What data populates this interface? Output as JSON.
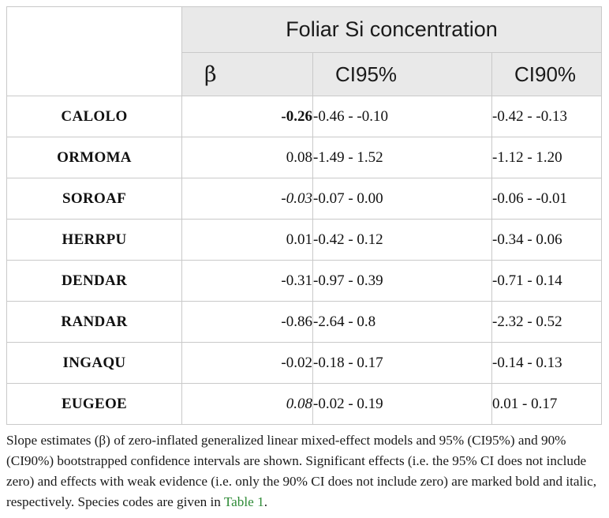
{
  "table": {
    "group_header": "Foliar Si concentration",
    "columns": [
      "β",
      "CI95%",
      "CI90%"
    ],
    "rows": [
      {
        "species": "CALOLO",
        "beta": "-0.26",
        "beta_style": "bold",
        "ci95": "-0.46 - -0.10",
        "ci90": "-0.42 - -0.13"
      },
      {
        "species": "ORMOMA",
        "beta": "0.08",
        "beta_style": "normal",
        "ci95": "-1.49 - 1.52",
        "ci90": "-1.12 - 1.20"
      },
      {
        "species": "SOROAF",
        "beta": "-0.03",
        "beta_style": "italic",
        "ci95": "-0.07 - 0.00",
        "ci90": "-0.06 - -0.01"
      },
      {
        "species": "HERRPU",
        "beta": "0.01",
        "beta_style": "normal",
        "ci95": "-0.42 - 0.12",
        "ci90": "-0.34 - 0.06"
      },
      {
        "species": "DENDAR",
        "beta": "-0.31",
        "beta_style": "normal",
        "ci95": "-0.97 - 0.39",
        "ci90": "-0.71 - 0.14"
      },
      {
        "species": "RANDAR",
        "beta": "-0.86",
        "beta_style": "normal",
        "ci95": "-2.64 - 0.8",
        "ci90": "-2.32 - 0.52"
      },
      {
        "species": "INGAQU",
        "beta": "-0.02",
        "beta_style": "normal",
        "ci95": "-0.18 - 0.17",
        "ci90": "-0.14 - 0.13"
      },
      {
        "species": "EUGEOE",
        "beta": "0.08",
        "beta_style": "italic",
        "ci95": "-0.02 - 0.19",
        "ci90": "0.01 - 0.17"
      }
    ]
  },
  "caption": {
    "text": "Slope estimates (β) of zero-inflated generalized linear mixed-effect models and 95% (CI95%) and 90% (CI90%) bootstrapped confidence intervals are shown. Significant effects (i.e. the 95% CI does not include zero) and effects with weak evidence (i.e. only the 90% CI does not include zero) are marked bold and italic, respectively. Species codes are given in ",
    "link": "Table 1",
    "end": "."
  },
  "colors": {
    "header_bg": "#e9e9e9",
    "border": "#c9c9c9",
    "link": "#2e8b36"
  }
}
